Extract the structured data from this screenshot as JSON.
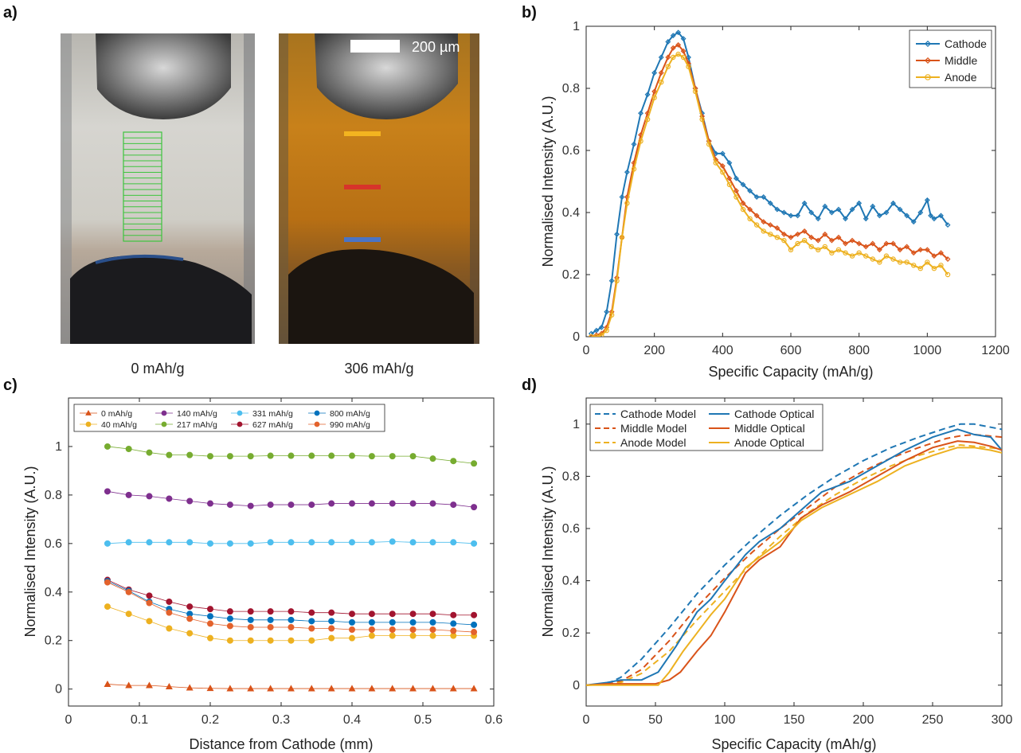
{
  "panel_labels": [
    "a)",
    "b)",
    "c)",
    "d)"
  ],
  "colors": {
    "blue": "#1f77b4",
    "orange": "#d95319",
    "yellow": "#edb120",
    "purple": "#7e2f8e",
    "green": "#77ac30",
    "cyan": "#4dbeee",
    "darkred": "#a2142f",
    "blue2": "#0072bd",
    "orange2": "#e3622c"
  },
  "panel_a": {
    "captions": [
      "0 mAh/g",
      "306 mAh/g"
    ],
    "scale_bar_label": "200 µm"
  },
  "chart_data": [
    {
      "panel": "b",
      "type": "line",
      "title": "",
      "xlabel": "Specific Capacity (mAh/g)",
      "ylabel": "Normalised Intensity (A.U.)",
      "xlim": [
        0,
        1200
      ],
      "ylim": [
        0,
        1
      ],
      "xticks": [
        0,
        200,
        400,
        600,
        800,
        1000,
        1200
      ],
      "yticks": [
        0,
        0.2,
        0.4,
        0.6,
        0.8,
        1
      ],
      "legend": "top-right",
      "grid": false,
      "series": [
        {
          "name": "Cathode",
          "color": "#1f77b4",
          "marker": "diamond",
          "x": [
            15,
            30,
            45,
            60,
            75,
            90,
            105,
            120,
            140,
            160,
            180,
            200,
            220,
            240,
            255,
            270,
            285,
            300,
            320,
            340,
            360,
            380,
            400,
            420,
            440,
            460,
            480,
            500,
            520,
            540,
            560,
            580,
            600,
            620,
            640,
            660,
            680,
            700,
            720,
            740,
            760,
            780,
            800,
            820,
            840,
            860,
            880,
            900,
            920,
            940,
            960,
            980,
            1000,
            1010,
            1020,
            1040,
            1060
          ],
          "y": [
            0.01,
            0.02,
            0.03,
            0.08,
            0.18,
            0.33,
            0.45,
            0.53,
            0.62,
            0.72,
            0.78,
            0.85,
            0.9,
            0.95,
            0.97,
            0.98,
            0.96,
            0.9,
            0.8,
            0.72,
            0.63,
            0.59,
            0.59,
            0.56,
            0.51,
            0.49,
            0.47,
            0.45,
            0.45,
            0.43,
            0.41,
            0.4,
            0.39,
            0.39,
            0.43,
            0.4,
            0.38,
            0.42,
            0.4,
            0.41,
            0.38,
            0.41,
            0.43,
            0.38,
            0.42,
            0.39,
            0.4,
            0.43,
            0.41,
            0.39,
            0.37,
            0.4,
            0.44,
            0.39,
            0.38,
            0.39,
            0.36
          ]
        },
        {
          "name": "Middle",
          "color": "#d95319",
          "marker": "diamond",
          "x": [
            15,
            30,
            45,
            60,
            75,
            90,
            105,
            120,
            140,
            160,
            180,
            200,
            220,
            240,
            255,
            270,
            285,
            300,
            320,
            340,
            360,
            380,
            400,
            420,
            440,
            460,
            480,
            500,
            520,
            540,
            560,
            580,
            600,
            620,
            640,
            660,
            680,
            700,
            720,
            740,
            760,
            780,
            800,
            820,
            840,
            860,
            880,
            900,
            920,
            940,
            960,
            980,
            1000,
            1020,
            1040,
            1060
          ],
          "y": [
            0,
            0.005,
            0.01,
            0.03,
            0.08,
            0.19,
            0.32,
            0.45,
            0.56,
            0.65,
            0.72,
            0.79,
            0.85,
            0.9,
            0.93,
            0.94,
            0.92,
            0.88,
            0.8,
            0.71,
            0.63,
            0.57,
            0.55,
            0.51,
            0.47,
            0.43,
            0.41,
            0.39,
            0.37,
            0.36,
            0.35,
            0.33,
            0.32,
            0.33,
            0.34,
            0.32,
            0.31,
            0.33,
            0.31,
            0.32,
            0.3,
            0.31,
            0.3,
            0.29,
            0.3,
            0.28,
            0.3,
            0.3,
            0.28,
            0.29,
            0.27,
            0.28,
            0.28,
            0.26,
            0.27,
            0.25
          ]
        },
        {
          "name": "Anode",
          "color": "#edb120",
          "marker": "circle",
          "x": [
            15,
            30,
            45,
            60,
            75,
            90,
            105,
            120,
            140,
            160,
            180,
            200,
            220,
            240,
            255,
            270,
            285,
            300,
            320,
            340,
            360,
            380,
            400,
            420,
            440,
            460,
            480,
            500,
            520,
            540,
            560,
            580,
            600,
            620,
            640,
            660,
            680,
            700,
            720,
            740,
            760,
            780,
            800,
            820,
            840,
            860,
            880,
            900,
            920,
            940,
            960,
            980,
            1000,
            1020,
            1040,
            1060
          ],
          "y": [
            0,
            0,
            0.005,
            0.02,
            0.07,
            0.18,
            0.32,
            0.43,
            0.54,
            0.63,
            0.7,
            0.77,
            0.82,
            0.87,
            0.9,
            0.91,
            0.9,
            0.87,
            0.79,
            0.7,
            0.62,
            0.56,
            0.53,
            0.49,
            0.45,
            0.41,
            0.38,
            0.36,
            0.34,
            0.33,
            0.32,
            0.31,
            0.28,
            0.3,
            0.31,
            0.29,
            0.28,
            0.29,
            0.27,
            0.28,
            0.27,
            0.26,
            0.27,
            0.26,
            0.25,
            0.24,
            0.26,
            0.25,
            0.24,
            0.24,
            0.23,
            0.22,
            0.24,
            0.22,
            0.23,
            0.2
          ]
        }
      ]
    },
    {
      "panel": "c",
      "type": "line",
      "title": "",
      "xlabel": "Distance from Cathode (mm)",
      "ylabel": "Normalised Intensity (A.U.)",
      "xlim": [
        0,
        0.6
      ],
      "ylim": [
        -0.07,
        1.2
      ],
      "xticks": [
        0,
        0.1,
        0.2,
        0.3,
        0.4,
        0.5,
        0.6
      ],
      "yticks": [
        0,
        0.2,
        0.4,
        0.6,
        0.8,
        1
      ],
      "legend": "top",
      "grid": false,
      "x": [
        0.055,
        0.085,
        0.114,
        0.142,
        0.171,
        0.2,
        0.228,
        0.257,
        0.285,
        0.314,
        0.343,
        0.371,
        0.4,
        0.428,
        0.457,
        0.486,
        0.514,
        0.543,
        0.572
      ],
      "series": [
        {
          "name": "0 mAh/g",
          "color": "#d95319",
          "marker": "triangle",
          "values": [
            0.02,
            0.015,
            0.015,
            0.01,
            0.005,
            0.003,
            0.002,
            0.002,
            0.002,
            0.002,
            0.002,
            0.002,
            0.002,
            0.002,
            0.002,
            0.002,
            0.002,
            0.002,
            0.002
          ]
        },
        {
          "name": "40 mAh/g",
          "color": "#edb120",
          "marker": "circle",
          "values": [
            0.34,
            0.31,
            0.28,
            0.25,
            0.23,
            0.21,
            0.2,
            0.2,
            0.2,
            0.2,
            0.2,
            0.21,
            0.21,
            0.22,
            0.22,
            0.22,
            0.22,
            0.22,
            0.22
          ]
        },
        {
          "name": "140 mAh/g",
          "color": "#7e2f8e",
          "marker": "circle",
          "values": [
            0.815,
            0.8,
            0.795,
            0.785,
            0.775,
            0.765,
            0.76,
            0.755,
            0.76,
            0.76,
            0.76,
            0.765,
            0.765,
            0.765,
            0.765,
            0.765,
            0.765,
            0.76,
            0.75
          ]
        },
        {
          "name": "217 mAh/g",
          "color": "#77ac30",
          "marker": "circle",
          "values": [
            1.0,
            0.99,
            0.975,
            0.965,
            0.965,
            0.96,
            0.96,
            0.96,
            0.962,
            0.962,
            0.962,
            0.962,
            0.962,
            0.96,
            0.96,
            0.96,
            0.95,
            0.94,
            0.93
          ]
        },
        {
          "name": "331 mAh/g",
          "color": "#4dbeee",
          "marker": "circle",
          "values": [
            0.6,
            0.605,
            0.605,
            0.605,
            0.605,
            0.6,
            0.6,
            0.6,
            0.605,
            0.605,
            0.605,
            0.605,
            0.605,
            0.605,
            0.608,
            0.605,
            0.605,
            0.605,
            0.6
          ]
        },
        {
          "name": "627 mAh/g",
          "color": "#a2142f",
          "marker": "circle",
          "values": [
            0.45,
            0.41,
            0.385,
            0.36,
            0.34,
            0.33,
            0.32,
            0.32,
            0.32,
            0.32,
            0.315,
            0.315,
            0.31,
            0.31,
            0.31,
            0.31,
            0.31,
            0.305,
            0.305
          ]
        },
        {
          "name": "800 mAh/g",
          "color": "#0072bd",
          "marker": "circle",
          "values": [
            0.445,
            0.405,
            0.36,
            0.33,
            0.31,
            0.3,
            0.29,
            0.285,
            0.285,
            0.285,
            0.28,
            0.28,
            0.275,
            0.275,
            0.275,
            0.275,
            0.275,
            0.27,
            0.265
          ]
        },
        {
          "name": "990 mAh/g",
          "color": "#e3622c",
          "marker": "circle",
          "values": [
            0.44,
            0.4,
            0.355,
            0.315,
            0.29,
            0.27,
            0.26,
            0.255,
            0.255,
            0.255,
            0.25,
            0.25,
            0.245,
            0.245,
            0.245,
            0.245,
            0.245,
            0.24,
            0.235
          ]
        }
      ]
    },
    {
      "panel": "d",
      "type": "line",
      "title": "",
      "xlabel": "Specific Capacity (mAh/g)",
      "ylabel": "Normalised Intensity (A.U.)",
      "xlim": [
        0,
        300
      ],
      "ylim": [
        -0.08,
        1.1
      ],
      "xticks": [
        0,
        50,
        100,
        150,
        200,
        250,
        300
      ],
      "yticks": [
        0,
        0.2,
        0.4,
        0.6,
        0.8,
        1
      ],
      "legend": "top-left",
      "grid": false,
      "series": [
        {
          "name": "Cathode Model",
          "color": "#1f77b4",
          "dash": true,
          "x": [
            0,
            15,
            25,
            40,
            60,
            80,
            100,
            120,
            140,
            160,
            180,
            200,
            220,
            240,
            260,
            270,
            280,
            290,
            300
          ],
          "y": [
            0,
            0.005,
            0.03,
            0.1,
            0.22,
            0.35,
            0.46,
            0.56,
            0.65,
            0.73,
            0.8,
            0.86,
            0.91,
            0.95,
            0.985,
            1.0,
            1.0,
            0.99,
            0.98
          ]
        },
        {
          "name": "Middle Model",
          "color": "#d95319",
          "dash": true,
          "x": [
            0,
            15,
            25,
            40,
            60,
            80,
            100,
            120,
            140,
            160,
            180,
            200,
            220,
            240,
            260,
            270,
            280,
            290,
            300
          ],
          "y": [
            0,
            0.003,
            0.015,
            0.06,
            0.17,
            0.3,
            0.41,
            0.51,
            0.6,
            0.68,
            0.76,
            0.82,
            0.87,
            0.91,
            0.945,
            0.955,
            0.96,
            0.955,
            0.95
          ]
        },
        {
          "name": "Anode Model",
          "color": "#edb120",
          "dash": true,
          "x": [
            0,
            15,
            25,
            40,
            60,
            80,
            100,
            120,
            140,
            160,
            180,
            200,
            220,
            240,
            260,
            270,
            280,
            290,
            300
          ],
          "y": [
            0,
            0.002,
            0.01,
            0.045,
            0.13,
            0.25,
            0.36,
            0.47,
            0.57,
            0.66,
            0.73,
            0.79,
            0.84,
            0.88,
            0.91,
            0.92,
            0.915,
            0.91,
            0.905
          ]
        },
        {
          "name": "Cathode Optical",
          "color": "#1f77b4",
          "dash": false,
          "x": [
            0,
            15,
            25,
            40,
            52,
            65,
            80,
            90,
            100,
            115,
            125,
            140,
            155,
            170,
            190,
            210,
            230,
            250,
            268,
            280,
            292,
            300
          ],
          "y": [
            0,
            0.01,
            0.02,
            0.02,
            0.05,
            0.15,
            0.28,
            0.33,
            0.4,
            0.5,
            0.55,
            0.6,
            0.67,
            0.74,
            0.78,
            0.84,
            0.9,
            0.95,
            0.98,
            0.96,
            0.95,
            0.9
          ]
        },
        {
          "name": "Middle Optical",
          "color": "#d95319",
          "dash": false,
          "x": [
            0,
            15,
            30,
            50,
            60,
            68,
            80,
            90,
            100,
            115,
            125,
            140,
            155,
            170,
            190,
            210,
            230,
            250,
            268,
            280,
            292,
            300
          ],
          "y": [
            0,
            0.005,
            0.005,
            0.005,
            0.02,
            0.05,
            0.13,
            0.19,
            0.28,
            0.43,
            0.48,
            0.53,
            0.64,
            0.69,
            0.74,
            0.8,
            0.86,
            0.91,
            0.935,
            0.93,
            0.915,
            0.9
          ]
        },
        {
          "name": "Anode Optical",
          "color": "#edb120",
          "dash": false,
          "x": [
            0,
            15,
            30,
            52,
            60,
            70,
            80,
            90,
            100,
            115,
            125,
            140,
            155,
            170,
            190,
            210,
            230,
            250,
            268,
            280,
            292,
            300
          ],
          "y": [
            0,
            0,
            0,
            0,
            0.05,
            0.13,
            0.2,
            0.27,
            0.33,
            0.45,
            0.49,
            0.55,
            0.63,
            0.68,
            0.73,
            0.78,
            0.84,
            0.88,
            0.91,
            0.91,
            0.9,
            0.89
          ]
        }
      ]
    }
  ]
}
